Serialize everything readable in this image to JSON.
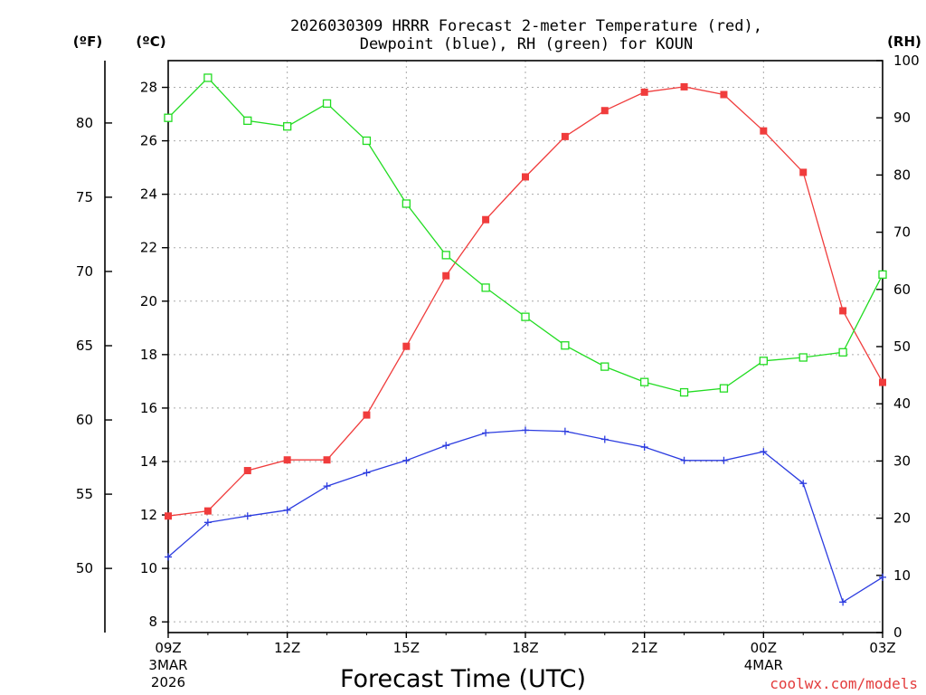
{
  "chart_data": {
    "type": "line",
    "title": "2026030309 HRRR Forecast 2-meter Temperature (red),",
    "subtitle": "Dewpoint (blue), RH (green) for KOUN",
    "xlabel": "Forecast Time (UTC)",
    "credit": "coolwx.com/models",
    "unit_left_f": "(ºF)",
    "unit_left_c": "(ºC)",
    "unit_right": "(RH)",
    "x_hours": [
      0,
      1,
      2,
      3,
      4,
      5,
      6,
      7,
      8,
      9,
      10,
      11,
      12,
      13,
      14,
      15,
      16,
      17,
      18
    ],
    "x_tick_labels": [
      {
        "hour": 0,
        "label": "09Z",
        "date1": "3MAR",
        "date2": "2026"
      },
      {
        "hour": 3,
        "label": "12Z"
      },
      {
        "hour": 6,
        "label": "15Z"
      },
      {
        "hour": 9,
        "label": "18Z"
      },
      {
        "hour": 12,
        "label": "21Z"
      },
      {
        "hour": 15,
        "label": "00Z",
        "date1": "4MAR"
      },
      {
        "hour": 18,
        "label": "03Z"
      }
    ],
    "y_celsius_ticks": [
      "8",
      "10",
      "12",
      "14",
      "16",
      "18",
      "20",
      "22",
      "24",
      "26",
      "28"
    ],
    "y_fahrenheit_ticks": [
      "50",
      "55",
      "60",
      "65",
      "70",
      "75",
      "80"
    ],
    "y_rh_ticks": [
      "0",
      "10",
      "20",
      "30",
      "40",
      "50",
      "60",
      "70",
      "80",
      "90",
      "100"
    ],
    "ylim_celsius": [
      7.6,
      29.0
    ],
    "ylim_rh": [
      0,
      100
    ],
    "series": [
      {
        "name": "Temperature",
        "unit": "C",
        "color": "#f03c3c",
        "marker": "filled-square",
        "values": [
          11.96,
          12.15,
          13.66,
          14.06,
          14.06,
          15.74,
          18.31,
          20.95,
          23.05,
          24.65,
          26.16,
          27.13,
          27.82,
          28.02,
          27.73,
          26.37,
          24.82,
          19.64,
          16.96
        ]
      },
      {
        "name": "Dewpoint",
        "unit": "C",
        "color": "#2c3ce0",
        "marker": "plus",
        "values": [
          10.43,
          11.72,
          11.96,
          12.18,
          13.08,
          13.58,
          14.04,
          14.6,
          15.07,
          15.17,
          15.13,
          14.83,
          14.54,
          14.04,
          14.04,
          14.37,
          13.18,
          8.74,
          9.67
        ]
      },
      {
        "name": "RH",
        "unit": "%",
        "color": "#22dc22",
        "marker": "open-square",
        "values": [
          90.0,
          97.0,
          89.5,
          88.5,
          92.5,
          86.0,
          75.0,
          66.0,
          60.3,
          55.2,
          50.2,
          46.5,
          43.8,
          42.0,
          42.7,
          47.5,
          48.1,
          49.0,
          62.6
        ]
      }
    ]
  }
}
